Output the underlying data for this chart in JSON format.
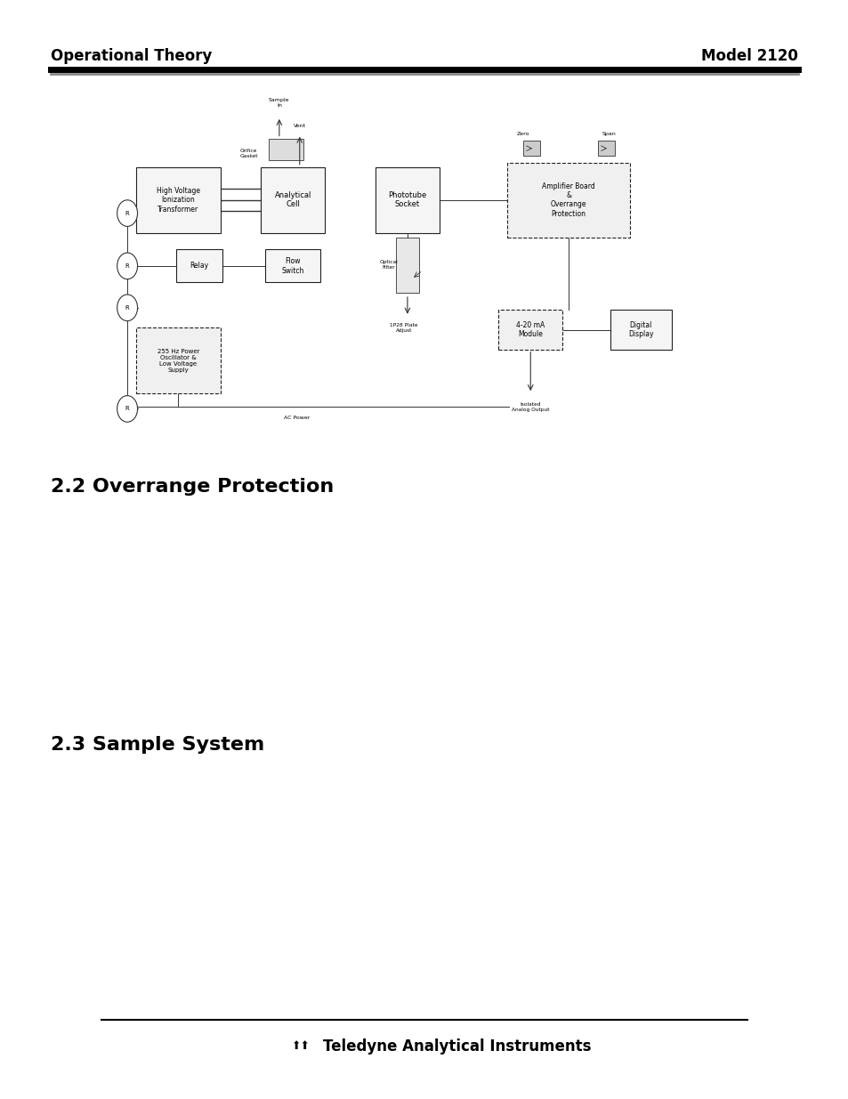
{
  "bg_color": "#ffffff",
  "header_left": "Operational Theory",
  "header_right": "Model 2120",
  "header_bar_color": "#000000",
  "header_bar2_color": "#888888",
  "section1_title": "2.2 Overrange Protection",
  "section2_title": "2.3 Sample System",
  "footer_text": "Teledyne Analytical Instruments",
  "footer_line_color": "#000000"
}
